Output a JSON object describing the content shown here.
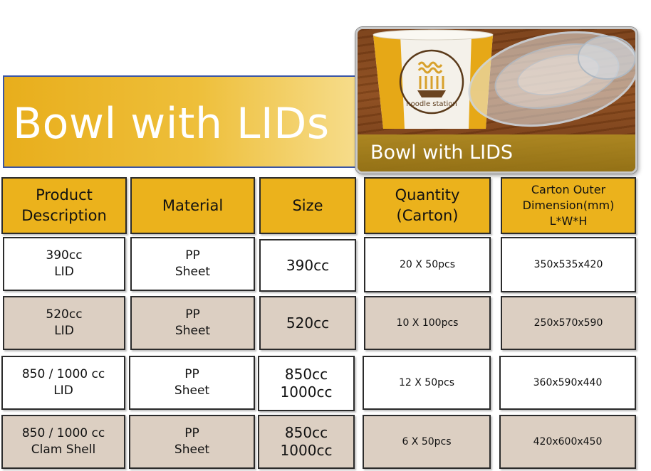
{
  "banner": {
    "title": "Bowl with LIDs"
  },
  "photo": {
    "caption": "Bowl with LIDS",
    "cup_print": "noodle station",
    "description": "paper bowl with clear plastic lid on wood"
  },
  "colors": {
    "header_gold": "#ebb21c",
    "row_tan": "#dccfc2",
    "banner_border": "#3a55a6"
  },
  "table": {
    "headers": {
      "product": "Product\nDescription",
      "material": "Material",
      "size": "Size",
      "quantity": "Quantity\n(Carton)",
      "carton": "Carton Outer\nDimension(mm)\nL*W*H"
    },
    "rows": [
      {
        "product": "390cc\nLID",
        "material": "PP\nSheet",
        "size": "390cc",
        "quantity": "20 X 50pcs",
        "carton": "350x535x420"
      },
      {
        "product": "520cc\nLID",
        "material": "PP\nSheet",
        "size": "520cc",
        "quantity": "10 X 100pcs",
        "carton": "250x570x590"
      },
      {
        "product": "850 / 1000 cc\nLID",
        "material": "PP\nSheet",
        "size": "850cc\n1000cc",
        "quantity": "12 X 50pcs",
        "carton": "360x590x440"
      },
      {
        "product": "850 / 1000 cc\nClam Shell",
        "material": "PP\nSheet",
        "size": "850cc\n1000cc",
        "quantity": "6 X 50pcs",
        "carton": "420x600x450"
      }
    ]
  }
}
